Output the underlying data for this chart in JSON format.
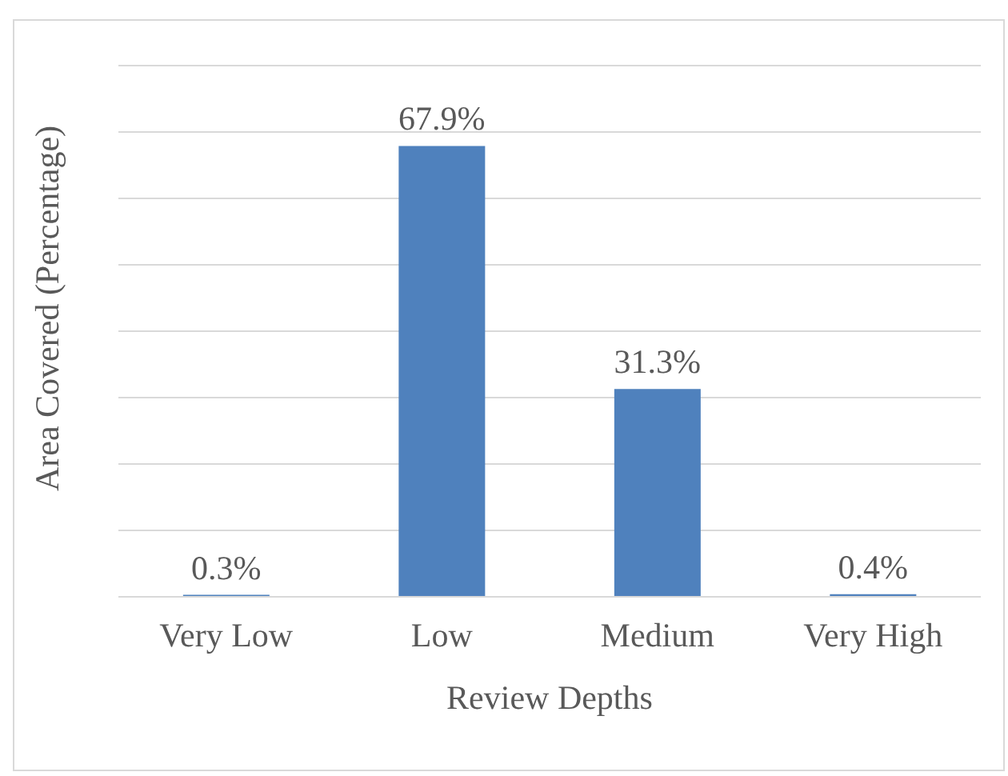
{
  "chart_data": {
    "type": "bar",
    "xlabel": "Review Depths",
    "ylabel": "Area Covered (Percentage)",
    "categories": [
      "Very Low",
      "Low",
      "Medium",
      "Very High"
    ],
    "values": [
      0.3,
      67.9,
      31.3,
      0.4
    ],
    "value_labels": [
      "0.3%",
      "67.9%",
      "31.3%",
      "0.4%"
    ],
    "color": "#4f81bd",
    "ylim": [
      0,
      80
    ],
    "tick_labels": "x",
    "grid": "y",
    "legend": false
  }
}
